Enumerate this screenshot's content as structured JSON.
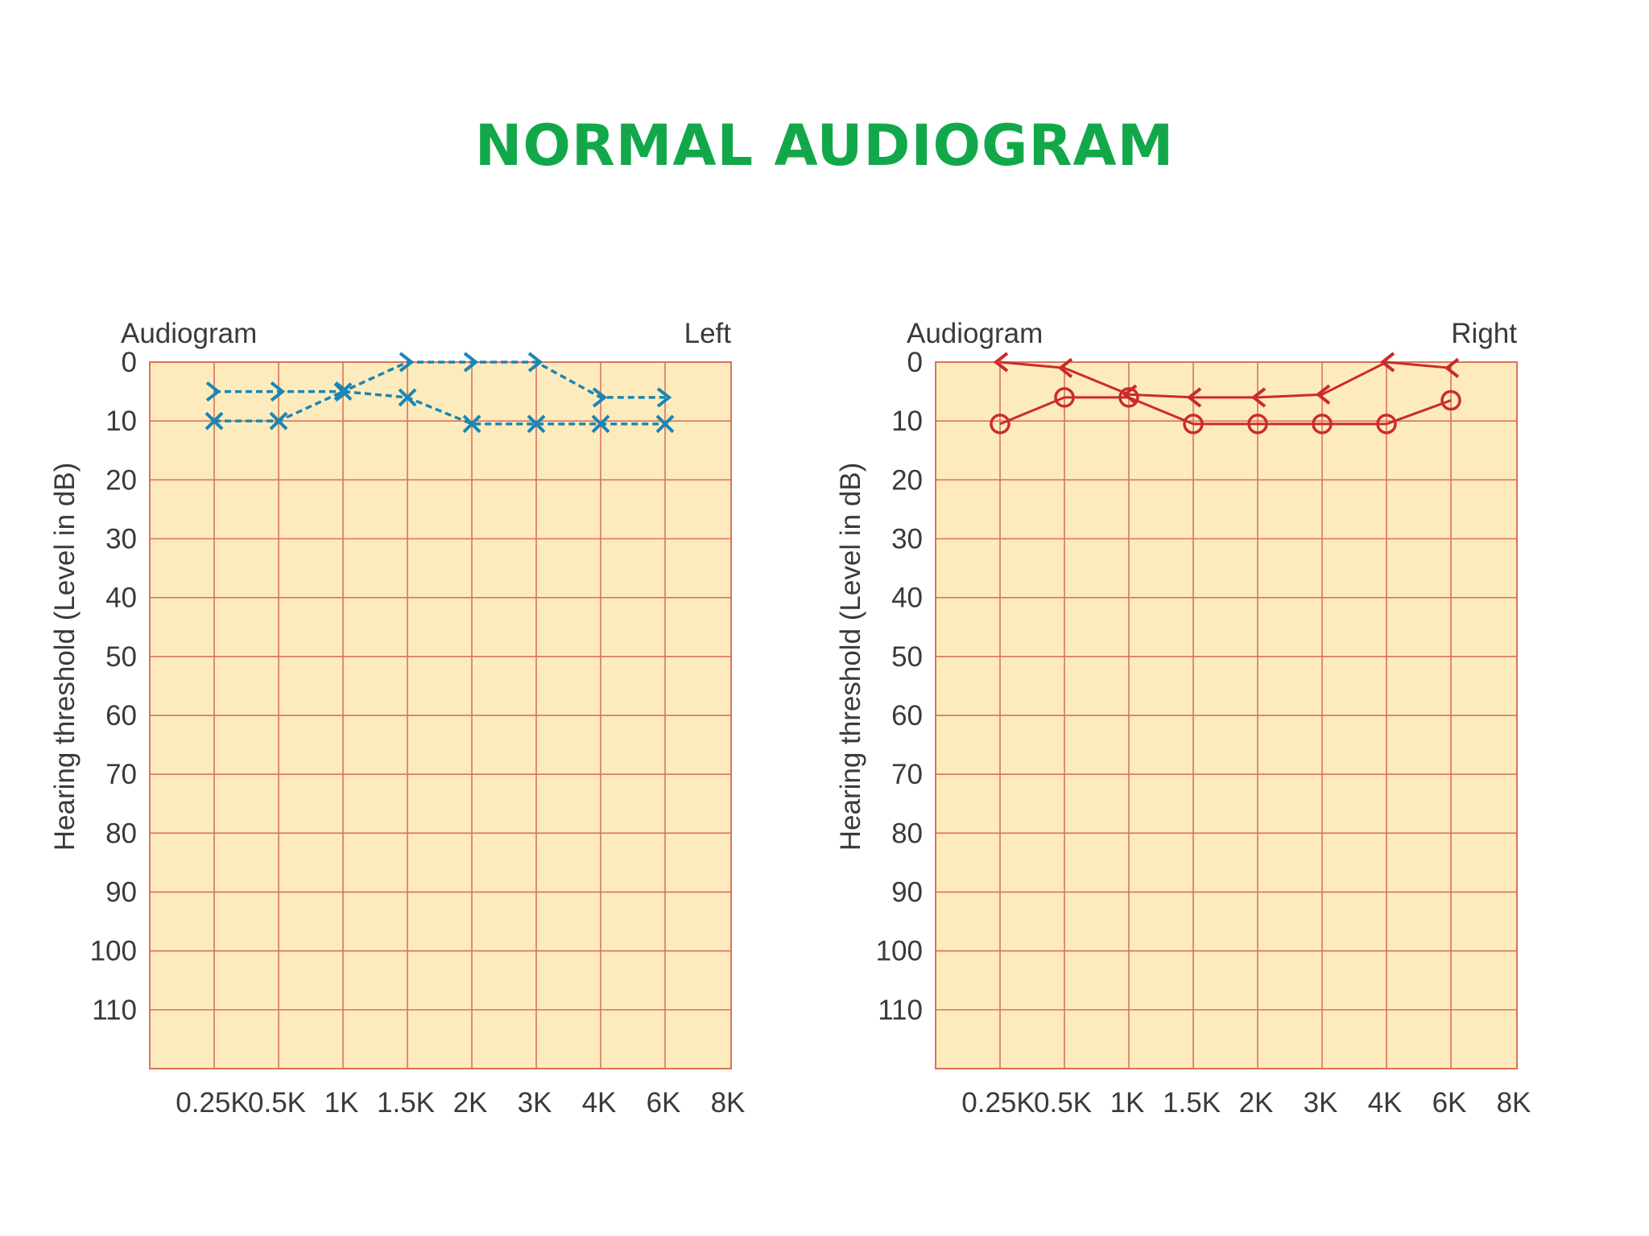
{
  "title": "NORMAL AUDIOGRAM",
  "colors": {
    "title": "#12a84a",
    "plot_bg": "#fdebbe",
    "grid": "#d9735a",
    "left_ear": "#1b86b3",
    "right_ear": "#cc2b2b"
  },
  "chart_data": [
    {
      "type": "line",
      "title": "Audiogram",
      "side_label": "Left",
      "ylabel": "Hearing threshold (Level in dB)",
      "categories": [
        "0.25K",
        "0.5K",
        "1K",
        "1.5K",
        "2K",
        "3K",
        "4K",
        "6K",
        "8K"
      ],
      "yticks": [
        0,
        10,
        20,
        30,
        40,
        50,
        60,
        70,
        80,
        90,
        100,
        110
      ],
      "ylim": [
        0,
        120
      ],
      "y_inverted": true,
      "grid": true,
      "series": [
        {
          "marker": "x",
          "line_style": "dashed",
          "color": "#1b86b3",
          "points": [
            [
              0.25,
              10
            ],
            [
              0.5,
              10
            ],
            [
              1,
              5
            ],
            [
              1.5,
              6
            ],
            [
              2,
              10.5
            ],
            [
              3,
              10.5
            ],
            [
              4,
              10.5
            ],
            [
              6,
              10.5
            ]
          ]
        },
        {
          "marker": "arrow-right",
          "line_style": "dashed",
          "color": "#1b86b3",
          "points": [
            [
              0.25,
              5
            ],
            [
              0.5,
              5
            ],
            [
              1,
              5
            ],
            [
              1.5,
              0
            ],
            [
              2,
              0
            ],
            [
              3,
              0
            ],
            [
              4,
              6
            ],
            [
              6,
              6
            ]
          ]
        }
      ]
    },
    {
      "type": "line",
      "title": "Audiogram",
      "side_label": "Right",
      "ylabel": "Hearing threshold (Level in dB)",
      "categories": [
        "0.25K",
        "0.5K",
        "1K",
        "1.5K",
        "2K",
        "3K",
        "4K",
        "6K",
        "8K"
      ],
      "yticks": [
        0,
        10,
        20,
        30,
        40,
        50,
        60,
        70,
        80,
        90,
        100,
        110
      ],
      "ylim": [
        0,
        120
      ],
      "y_inverted": true,
      "grid": true,
      "series": [
        {
          "marker": "o",
          "line_style": "solid",
          "color": "#cc2b2b",
          "points": [
            [
              0.25,
              10.5
            ],
            [
              0.5,
              6
            ],
            [
              1,
              6
            ],
            [
              1.5,
              10.5
            ],
            [
              2,
              10.5
            ],
            [
              3,
              10.5
            ],
            [
              4,
              10.5
            ],
            [
              6,
              6.5
            ]
          ]
        },
        {
          "marker": "arrow-left",
          "line_style": "solid",
          "color": "#cc2b2b",
          "points": [
            [
              0.25,
              0
            ],
            [
              0.5,
              1
            ],
            [
              1,
              5.5
            ],
            [
              1.5,
              6
            ],
            [
              2,
              6
            ],
            [
              3,
              5.5
            ],
            [
              4,
              0
            ],
            [
              6,
              1
            ]
          ]
        }
      ]
    }
  ]
}
